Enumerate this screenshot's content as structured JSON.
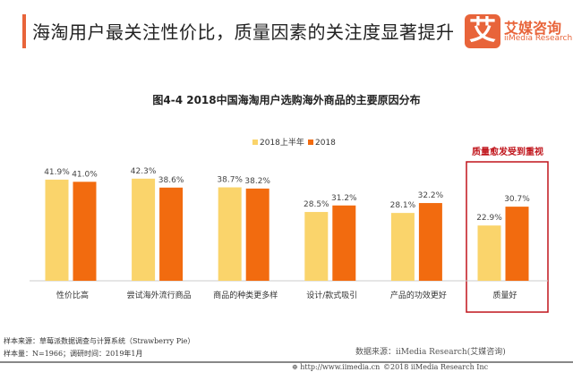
{
  "header": {
    "title": "海淘用户最关注性价比，质量因素的关注度显著提升",
    "logo_cn": "艾媒咨询",
    "logo_en": "iiMedia Research",
    "logo_mark": "艾",
    "accent": "#E8643A"
  },
  "chart_data": {
    "type": "bar",
    "title": "图4-4 2018中国海淘用户选购海外商品的主要原因分布",
    "categories": [
      "性价比高",
      "尝试海外流行商品",
      "商品的种类更多样",
      "设计/款式吸引",
      "产品的功效更好",
      "质量好"
    ],
    "series": [
      {
        "name": "2018上半年",
        "color": "#FAD46B",
        "values": [
          41.9,
          42.3,
          38.7,
          28.5,
          28.1,
          22.9
        ],
        "labels": [
          "41.9%",
          "42.3%",
          "38.7%",
          "28.5%",
          "28.1%",
          "22.9%"
        ]
      },
      {
        "name": "2018",
        "color": "#F26B0F",
        "values": [
          41.0,
          38.6,
          38.2,
          31.2,
          32.2,
          30.7
        ],
        "labels": [
          "41.0%",
          "38.6%",
          "38.2%",
          "31.2%",
          "32.2%",
          "30.7%"
        ]
      }
    ],
    "ylim": [
      0,
      50
    ],
    "grid": false,
    "legend": "top-center",
    "highlight": {
      "category": "质量好",
      "label": "质量愈发受到重视",
      "color": "#C0141B"
    }
  },
  "footer": {
    "sample_source": "样本来源：草莓派数据调查与计算系统（Strawberry Pie）",
    "sample_size": "样本量：N=1966；调研时间：2019年1月",
    "data_source": "数据来源：iiMedia Research(艾媒咨询)",
    "url": "http://www.iimedia.cn",
    "copyright": "©2018  iiMedia Research Inc"
  }
}
